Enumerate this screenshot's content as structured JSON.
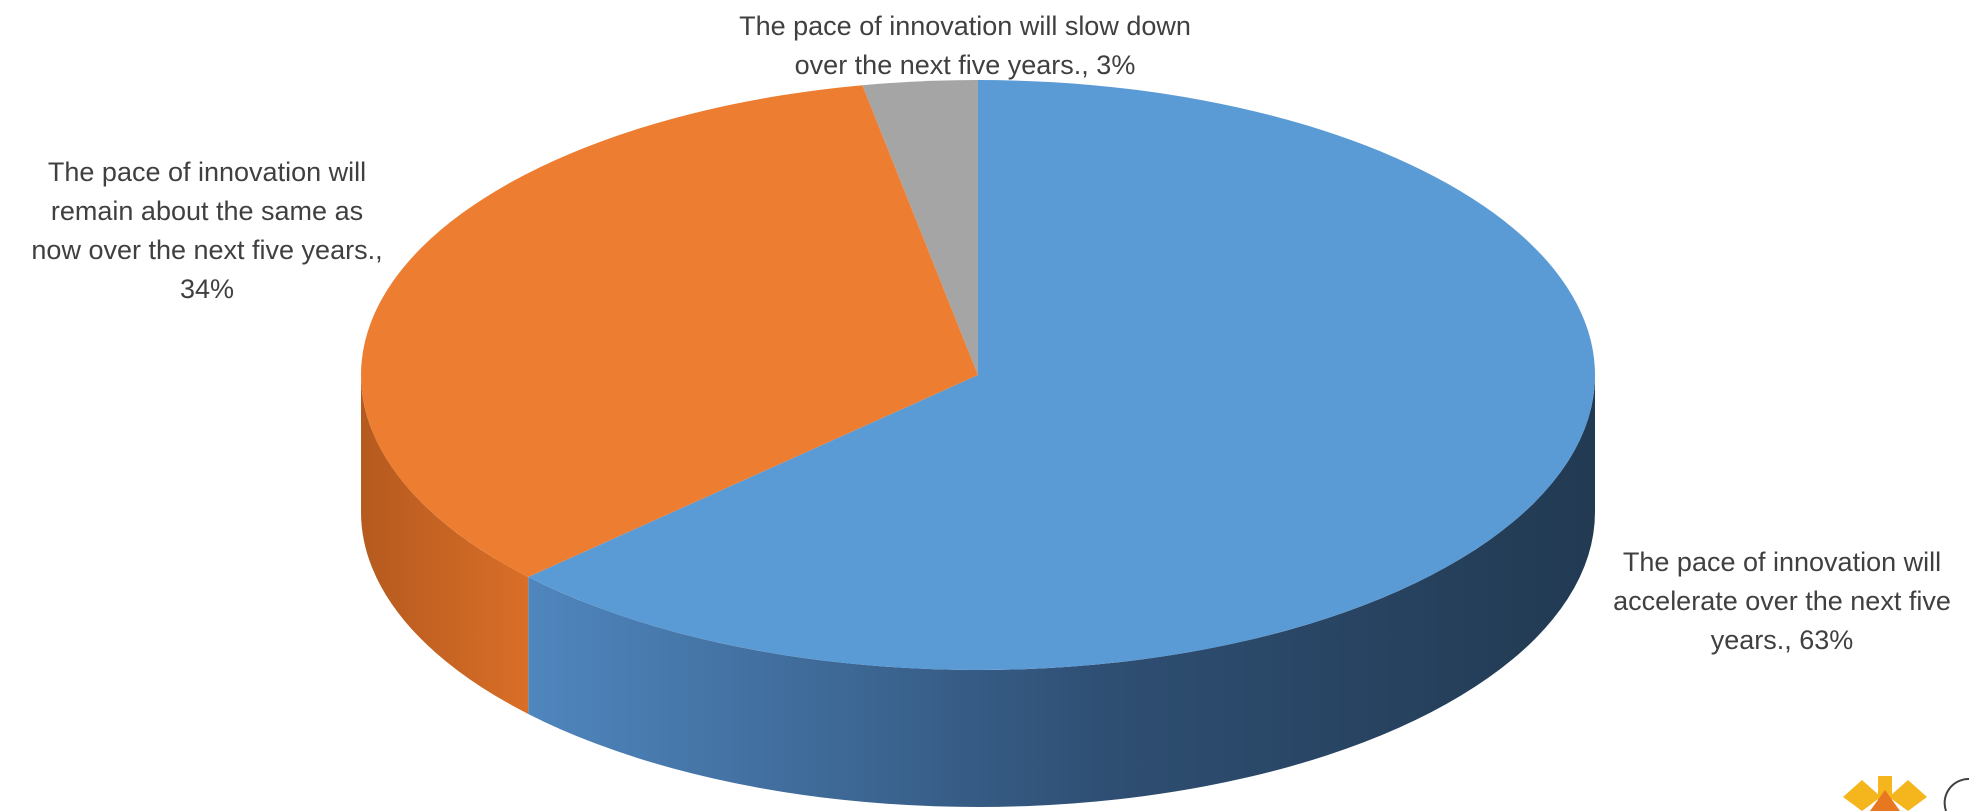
{
  "chart_data": {
    "type": "pie",
    "style": "3d",
    "title": "",
    "start_at": "12 o'clock",
    "direction": "clockwise",
    "slices": [
      {
        "label": "The pace of innovation will accelerate over the next five years.",
        "value": 63,
        "display": "The pace of innovation will accelerate over the next five years., 63%",
        "label_lines": [
          "The pace of innovation will",
          "accelerate over the next five",
          "years., 63%"
        ],
        "color": "#5B9BD5",
        "side_dark": "#223A52",
        "side_light": "#4F86BE"
      },
      {
        "label": "The pace of innovation will remain about the same as now over the next five years.",
        "value": 34,
        "display": "The pace of innovation will remain about the same as now over the next five years., 34%",
        "label_lines": [
          "The pace of innovation will",
          "remain about the same as",
          "now over the next five years.,",
          "34%"
        ],
        "color": "#ED7D31",
        "side_dark": "#B55A1F",
        "side_light": "#D96E27"
      },
      {
        "label": "The pace of innovation will slow down over the next five years.",
        "value": 3,
        "display": "The pace of innovation will slow down over the next five years., 3%",
        "label_lines": [
          "The pace of innovation will slow down",
          "over the next five years., 3%"
        ],
        "color": "#A5A5A5",
        "side_dark": "#6E6E6E",
        "side_light": "#8C8C8C"
      }
    ],
    "legend": "none"
  },
  "logo": {
    "colors": [
      "#F5B51C",
      "#E87722"
    ]
  }
}
